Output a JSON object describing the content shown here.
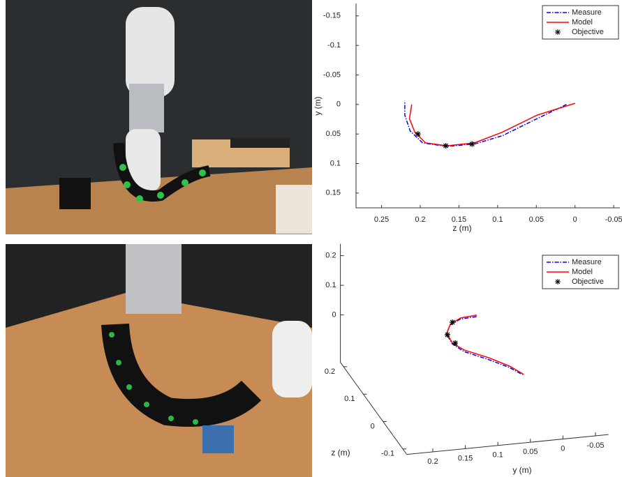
{
  "chart_data": [
    {
      "type": "line",
      "xlabel": "z (m)",
      "ylabel": "y (m)",
      "xlim": [
        0.283,
        -0.058
      ],
      "ylim": [
        -0.171,
        0.175
      ],
      "xticks": [
        0.25,
        0.2,
        0.15,
        0.1,
        0.05,
        0,
        -0.05
      ],
      "yticks": [
        -0.15,
        -0.1,
        -0.05,
        0,
        0.05,
        0.1,
        0.15
      ],
      "legend": "upper right",
      "series": [
        {
          "name": "Measure",
          "color": "#0000ff",
          "style": "dashdot",
          "x": [
            0.011,
            0.049,
            0.094,
            0.13,
            0.166,
            0.197,
            0.213,
            0.22,
            0.22
          ],
          "values": [
            0,
            0.024,
            0.053,
            0.067,
            0.071,
            0.065,
            0.045,
            0.018,
            -0.006
          ]
        },
        {
          "name": "Model",
          "color": "#ff0000",
          "style": "solid",
          "x": [
            0,
            0.049,
            0.094,
            0.13,
            0.166,
            0.193,
            0.207,
            0.214,
            0.211
          ],
          "values": [
            -0.002,
            0.018,
            0.047,
            0.065,
            0.07,
            0.065,
            0.047,
            0.024,
            0
          ]
        },
        {
          "name": "Objective",
          "color": "#000000",
          "style": "marker",
          "x": [
            0.203,
            0.167,
            0.133
          ],
          "values": [
            0.05,
            0.07,
            0.067
          ]
        }
      ]
    },
    {
      "type": "line3d",
      "ylabel": "y (m)",
      "zlabel": "z (m)",
      "xlim": [
        -0.16,
        0.24
      ],
      "ylim": [
        0.24,
        -0.07
      ],
      "zlim": [
        -0.12,
        0.216
      ],
      "xticks": [
        0,
        0.1,
        0.2
      ],
      "yticks": [
        0.2,
        0.15,
        0.1,
        0.05,
        0,
        -0.05
      ],
      "zticks": [
        -0.1,
        0,
        0.1,
        0.2
      ],
      "legend": "upper right",
      "series": [
        {
          "name": "Measure",
          "color": "#0000ff",
          "style": "dashdot",
          "x": [
            -0.06,
            -0.06,
            -0.06,
            -0.06,
            -0.06,
            -0.06,
            -0.06,
            -0.06,
            -0.06
          ],
          "y": [
            0.028,
            0.054,
            0.075,
            0.089,
            0.091,
            0.082,
            0.056,
            0.034,
            0.022
          ],
          "z": [
            0.225,
            0.222,
            0.205,
            0.176,
            0.14,
            0.11,
            0.076,
            0.042,
            0.012
          ]
        },
        {
          "name": "Model",
          "color": "#ff0000",
          "style": "solid",
          "x": [
            -0.06,
            -0.06,
            -0.06,
            -0.06,
            -0.06,
            -0.06,
            -0.06,
            -0.06,
            -0.06
          ],
          "y": [
            0.026,
            0.052,
            0.0735,
            0.088,
            0.09,
            0.08,
            0.053,
            0.0317,
            0.02
          ],
          "z": [
            0.23,
            0.226,
            0.208,
            0.178,
            0.143,
            0.115,
            0.081,
            0.0456,
            0.012
          ]
        },
        {
          "name": "Objective",
          "color": "#000000",
          "style": "marker",
          "x": [
            -0.06,
            -0.06,
            -0.06
          ],
          "y": [
            0.0684,
            0.0885,
            0.086
          ],
          "z": [
            0.214,
            0.173,
            0.142
          ]
        }
      ]
    }
  ]
}
